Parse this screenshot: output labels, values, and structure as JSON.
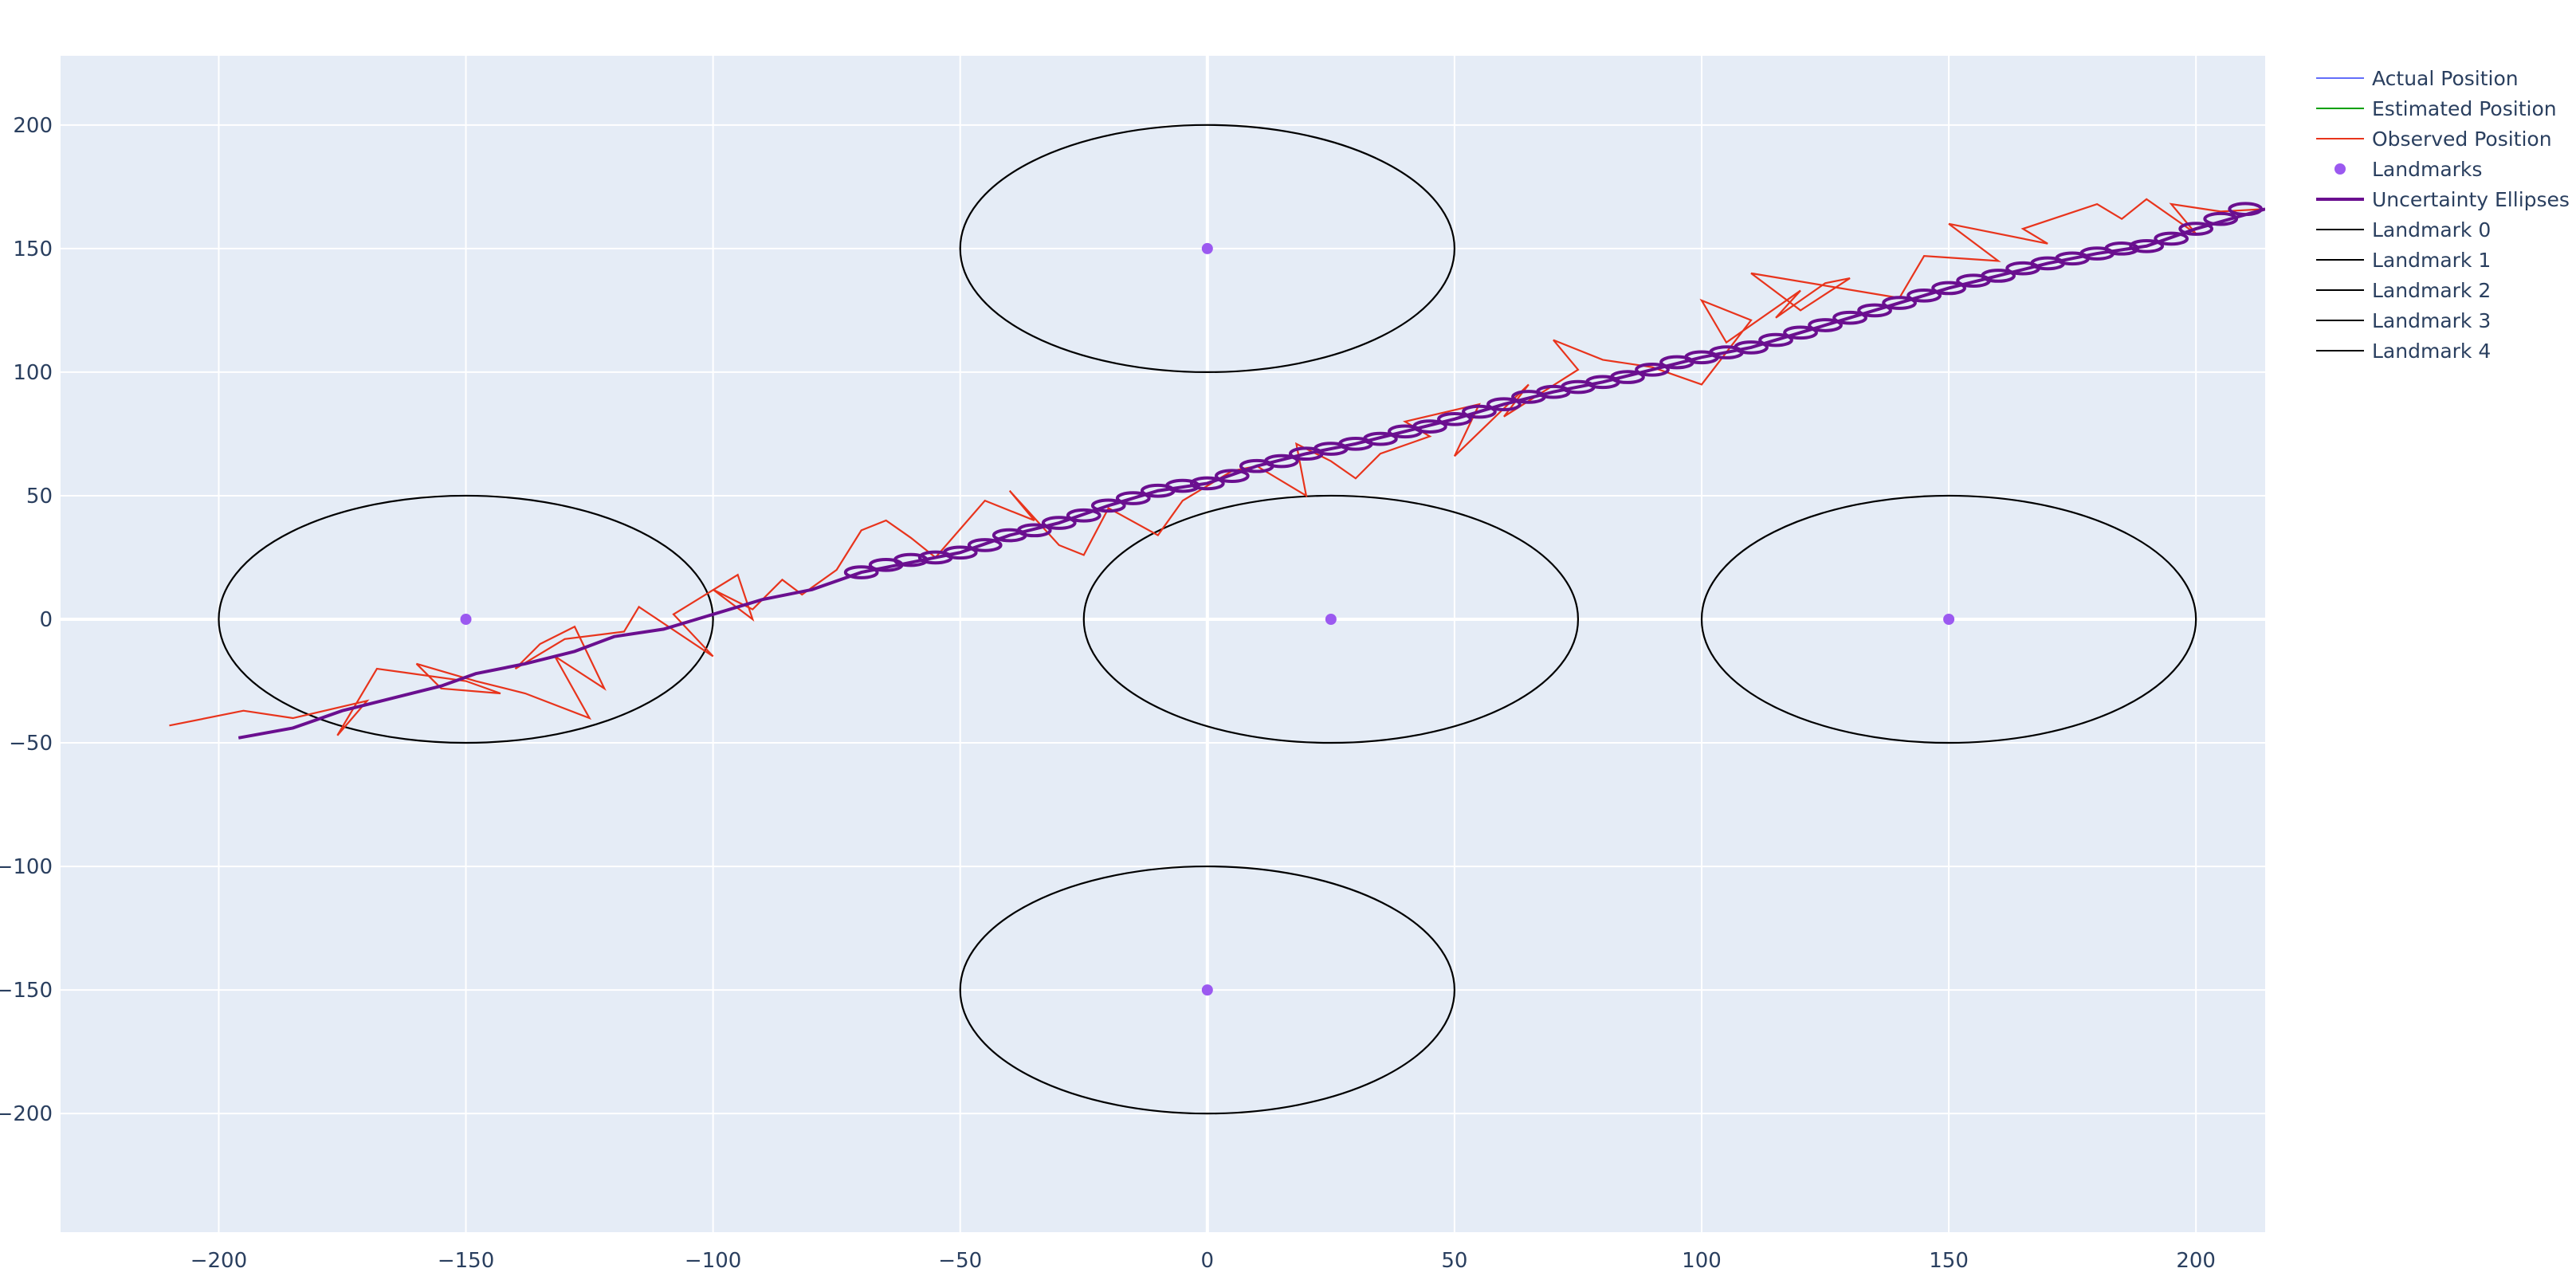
{
  "chart_data": {
    "type": "line",
    "title": "",
    "xlabel": "",
    "ylabel": "",
    "xlim": [
      -232,
      214
    ],
    "ylim": [
      -248,
      228
    ],
    "x_ticks": [
      -200,
      -150,
      -100,
      -50,
      0,
      50,
      100,
      150,
      200
    ],
    "y_ticks": [
      -200,
      -150,
      -100,
      -50,
      0,
      50,
      100,
      150,
      200
    ],
    "x_tick_labels": [
      "−200",
      "−150",
      "−100",
      "−50",
      "0",
      "50",
      "100",
      "150",
      "200"
    ],
    "y_tick_labels": [
      "−200",
      "−150",
      "−100",
      "−50",
      "0",
      "50",
      "100",
      "150",
      "200"
    ],
    "grid": true,
    "legend_position": "right",
    "background_color": "#e5ecf6",
    "series": [
      {
        "name": "Actual Position",
        "kind": "line",
        "color": "#636efa",
        "x": [
          -196,
          -185,
          -175,
          -165,
          -155,
          -148,
          -138,
          -128,
          -120,
          -110,
          -100,
          -90,
          -80,
          -70,
          -60,
          -50,
          -40,
          -30,
          -20,
          -10,
          0,
          10,
          20,
          30,
          40,
          50,
          60,
          70,
          80,
          90,
          100,
          110,
          120,
          130,
          140,
          150,
          160,
          170,
          180,
          190,
          200,
          214
        ],
        "y": [
          -48,
          -44,
          -37,
          -32,
          -27,
          -22,
          -18,
          -13,
          -7,
          -4,
          2,
          8,
          12,
          19,
          23,
          27,
          34,
          39,
          46,
          52,
          55,
          62,
          67,
          71,
          76,
          81,
          87,
          92,
          96,
          101,
          106,
          110,
          116,
          122,
          128,
          134,
          139,
          144,
          148,
          151,
          158,
          166
        ]
      },
      {
        "name": "Estimated Position",
        "kind": "line",
        "color": "#00a000",
        "x": [
          -196,
          -185,
          -175,
          -165,
          -155,
          -148,
          -138,
          -128,
          -120,
          -110,
          -100,
          -90,
          -80,
          -70,
          -60,
          -50,
          -40,
          -30,
          -20,
          -10,
          0,
          10,
          20,
          30,
          40,
          50,
          60,
          70,
          80,
          90,
          100,
          110,
          120,
          130,
          140,
          150,
          160,
          170,
          180,
          190,
          200,
          214
        ],
        "y": [
          -48,
          -44,
          -37,
          -32,
          -27,
          -22,
          -18,
          -13,
          -7,
          -4,
          2,
          8,
          12,
          19,
          23,
          27,
          34,
          39,
          46,
          52,
          55,
          62,
          67,
          71,
          76,
          81,
          87,
          92,
          96,
          101,
          106,
          110,
          116,
          122,
          128,
          134,
          139,
          144,
          148,
          151,
          158,
          166
        ]
      },
      {
        "name": "Observed Position",
        "kind": "line",
        "color": "#e8341c",
        "x": [
          -210,
          -195,
          -185,
          -170,
          -176,
          -168,
          -150,
          -143,
          -155,
          -160,
          -148,
          -138,
          -125,
          -132,
          -122,
          -128,
          -135,
          -140,
          -130,
          -118,
          -115,
          -100,
          -108,
          -95,
          -92,
          -100,
          -92,
          -86,
          -82,
          -75,
          -70,
          -65,
          -60,
          -55,
          -45,
          -35,
          -40,
          -30,
          -25,
          -20,
          -10,
          -5,
          5,
          10,
          20,
          18,
          25,
          30,
          35,
          45,
          40,
          55,
          50,
          65,
          60,
          75,
          70,
          80,
          90,
          100,
          110,
          100,
          105,
          120,
          115,
          125,
          130,
          120,
          110,
          140,
          145,
          160,
          150,
          170,
          165,
          180,
          185,
          190,
          200,
          195,
          205,
          214
        ],
        "y": [
          -43,
          -37,
          -40,
          -33,
          -47,
          -20,
          -25,
          -30,
          -28,
          -18,
          -25,
          -30,
          -40,
          -15,
          -28,
          -3,
          -10,
          -20,
          -8,
          -5,
          5,
          -15,
          2,
          18,
          0,
          12,
          4,
          16,
          10,
          20,
          36,
          40,
          33,
          25,
          48,
          40,
          52,
          30,
          26,
          45,
          34,
          48,
          60,
          62,
          50,
          71,
          64,
          57,
          67,
          74,
          80,
          87,
          66,
          95,
          82,
          101,
          113,
          105,
          102,
          95,
          121,
          129,
          112,
          133,
          122,
          136,
          138,
          125,
          140,
          130,
          147,
          145,
          160,
          152,
          158,
          168,
          162,
          170,
          156,
          168,
          165,
          166
        ]
      },
      {
        "name": "Landmarks",
        "kind": "markers",
        "color": "#9b59f0",
        "x": [
          0,
          -150,
          25,
          150,
          0
        ],
        "y": [
          150,
          0,
          0,
          0,
          -150
        ]
      },
      {
        "name": "Uncertainty Ellipses",
        "kind": "ellipses",
        "color": "#6a0f8f",
        "rx": 3.2,
        "ry": 2.2,
        "x": [
          -70,
          -65,
          -60,
          -55,
          -50,
          -45,
          -40,
          -35,
          -30,
          -25,
          -20,
          -15,
          -10,
          -5,
          0,
          5,
          10,
          15,
          20,
          25,
          30,
          35,
          40,
          45,
          50,
          55,
          60,
          65,
          70,
          75,
          80,
          85,
          90,
          95,
          100,
          105,
          110,
          115,
          120,
          125,
          130,
          135,
          140,
          145,
          150,
          155,
          160,
          165,
          170,
          175,
          180,
          185,
          190,
          195,
          200,
          205,
          210
        ],
        "y": [
          19,
          22,
          24,
          25,
          27,
          30,
          34,
          36,
          39,
          42,
          46,
          49,
          52,
          54,
          55,
          58,
          62,
          64,
          67,
          69,
          71,
          73,
          76,
          78,
          81,
          84,
          87,
          90,
          92,
          94,
          96,
          98,
          101,
          104,
          106,
          108,
          110,
          113,
          116,
          119,
          122,
          125,
          128,
          131,
          134,
          137,
          139,
          142,
          144,
          146,
          148,
          150,
          151,
          154,
          158,
          162,
          166
        ]
      },
      {
        "name": "Landmark 0",
        "kind": "circle",
        "color": "#000000",
        "cx": 0,
        "cy": 150,
        "r": 50
      },
      {
        "name": "Landmark 1",
        "kind": "circle",
        "color": "#000000",
        "cx": -150,
        "cy": 0,
        "r": 50
      },
      {
        "name": "Landmark 2",
        "kind": "circle",
        "color": "#000000",
        "cx": 25,
        "cy": 0,
        "r": 50
      },
      {
        "name": "Landmark 3",
        "kind": "circle",
        "color": "#000000",
        "cx": 150,
        "cy": 0,
        "r": 50
      },
      {
        "name": "Landmark 4",
        "kind": "circle",
        "color": "#000000",
        "cx": 0,
        "cy": -150,
        "r": 50
      }
    ]
  }
}
